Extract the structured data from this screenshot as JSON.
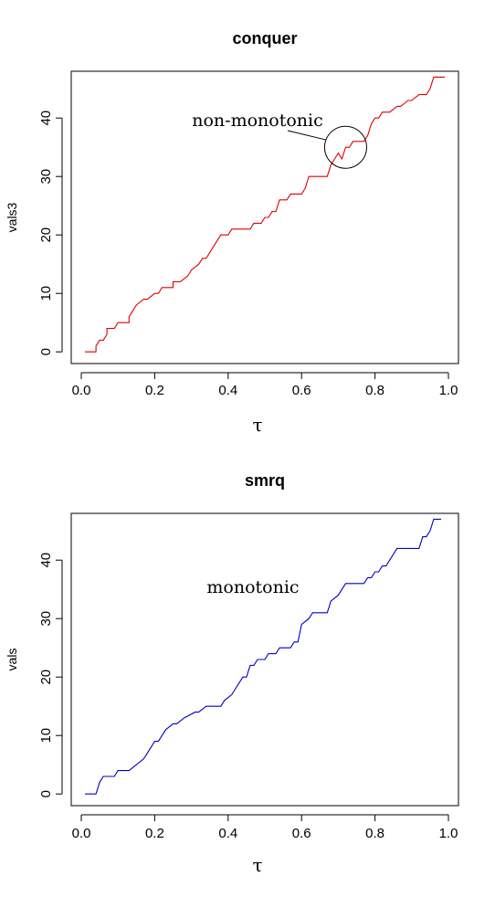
{
  "chart_data": [
    {
      "type": "line",
      "title": "conquer",
      "xlabel": "τ",
      "ylabel": "vals3",
      "xlim": [
        0.0,
        1.0
      ],
      "ylim": [
        -2,
        48
      ],
      "xticks": [
        "0.0",
        "0.2",
        "0.4",
        "0.6",
        "0.8",
        "1.0"
      ],
      "yticks": [
        "0",
        "10",
        "20",
        "30",
        "40"
      ],
      "series_color": "#e00000",
      "annotation": {
        "text": "non-monotonic",
        "point": [
          0.72,
          35
        ]
      },
      "series": [
        {
          "x": [
            0.01,
            0.04,
            0.04,
            0.05,
            0.06,
            0.07,
            0.07,
            0.09,
            0.09,
            0.1,
            0.1,
            0.13,
            0.13,
            0.15,
            0.17,
            0.18,
            0.2,
            0.21,
            0.22,
            0.25,
            0.25,
            0.27,
            0.29,
            0.3,
            0.32,
            0.33,
            0.34,
            0.35,
            0.37,
            0.38,
            0.4,
            0.41,
            0.42,
            0.46,
            0.47,
            0.48,
            0.49,
            0.5,
            0.51,
            0.52,
            0.53,
            0.54,
            0.56,
            0.57,
            0.6,
            0.61,
            0.62,
            0.67,
            0.68,
            0.69,
            0.7,
            0.71,
            0.72,
            0.73,
            0.74,
            0.75,
            0.77,
            0.78,
            0.79,
            0.8,
            0.81,
            0.82,
            0.83,
            0.84,
            0.86,
            0.87,
            0.89,
            0.9,
            0.92,
            0.93,
            0.94,
            0.95,
            0.96,
            0.97,
            0.99
          ],
          "y": [
            0,
            0,
            1,
            2,
            2,
            3,
            4,
            4,
            4,
            5,
            5,
            5,
            6,
            8,
            9,
            9,
            10,
            10,
            11,
            11,
            12,
            12,
            13,
            14,
            15,
            16,
            16,
            17,
            19,
            20,
            20,
            21,
            21,
            21,
            22,
            22,
            22,
            23,
            23,
            24,
            24,
            26,
            26,
            27,
            27,
            28,
            30,
            30,
            32,
            33,
            34,
            33,
            35,
            35,
            36,
            36,
            36,
            37,
            39,
            40,
            40,
            41,
            41,
            41,
            42,
            42,
            43,
            43,
            44,
            44,
            44,
            45,
            47,
            47,
            47
          ]
        }
      ]
    },
    {
      "type": "line",
      "title": "smrq",
      "xlabel": "τ",
      "ylabel": "vals",
      "xlim": [
        0.0,
        1.0
      ],
      "ylim": [
        -2,
        48
      ],
      "xticks": [
        "0.0",
        "0.2",
        "0.4",
        "0.6",
        "0.8",
        "1.0"
      ],
      "yticks": [
        "0",
        "10",
        "20",
        "30",
        "40"
      ],
      "series_color": "#0000cc",
      "annotation": {
        "text": "monotonic"
      },
      "series": [
        {
          "x": [
            0.01,
            0.04,
            0.05,
            0.06,
            0.09,
            0.1,
            0.12,
            0.13,
            0.15,
            0.17,
            0.18,
            0.2,
            0.21,
            0.22,
            0.23,
            0.25,
            0.26,
            0.28,
            0.31,
            0.32,
            0.34,
            0.36,
            0.38,
            0.39,
            0.41,
            0.42,
            0.43,
            0.44,
            0.45,
            0.46,
            0.47,
            0.48,
            0.5,
            0.51,
            0.53,
            0.54,
            0.57,
            0.58,
            0.59,
            0.6,
            0.62,
            0.63,
            0.67,
            0.68,
            0.7,
            0.71,
            0.72,
            0.75,
            0.77,
            0.78,
            0.79,
            0.8,
            0.81,
            0.82,
            0.83,
            0.84,
            0.86,
            0.87,
            0.89,
            0.92,
            0.93,
            0.94,
            0.95,
            0.96,
            0.98
          ],
          "y": [
            0,
            0,
            2,
            3,
            3,
            4,
            4,
            4,
            5,
            6,
            7,
            9,
            9,
            10,
            11,
            12,
            12,
            13,
            14,
            14,
            15,
            15,
            15,
            16,
            17,
            18,
            19,
            20,
            20,
            22,
            22,
            23,
            23,
            24,
            24,
            25,
            25,
            26,
            26,
            29,
            30,
            31,
            31,
            33,
            34,
            35,
            36,
            36,
            36,
            37,
            37,
            38,
            38,
            39,
            39,
            40,
            42,
            42,
            42,
            42,
            44,
            44,
            45,
            47,
            47
          ]
        }
      ]
    }
  ]
}
